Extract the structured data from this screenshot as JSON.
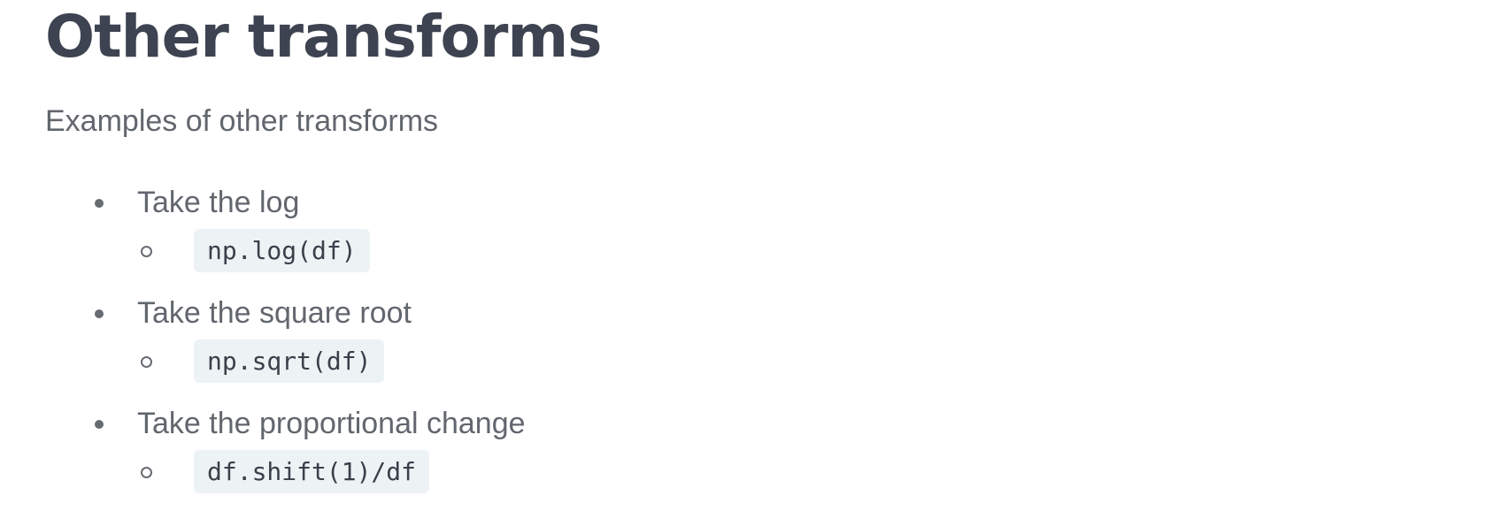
{
  "title": "Other transforms",
  "subtitle": "Examples of other transforms",
  "items": [
    {
      "label": "Take the log",
      "code": "np.log(df)"
    },
    {
      "label": "Take the square root",
      "code": "np.sqrt(df)"
    },
    {
      "label": "Take the proportional change",
      "code": "df.shift(1)/df"
    }
  ],
  "colors": {
    "heading": "#3d4350",
    "body_text": "#62666e",
    "code_background": "#edf2f5",
    "code_text": "#3a3f4a"
  }
}
